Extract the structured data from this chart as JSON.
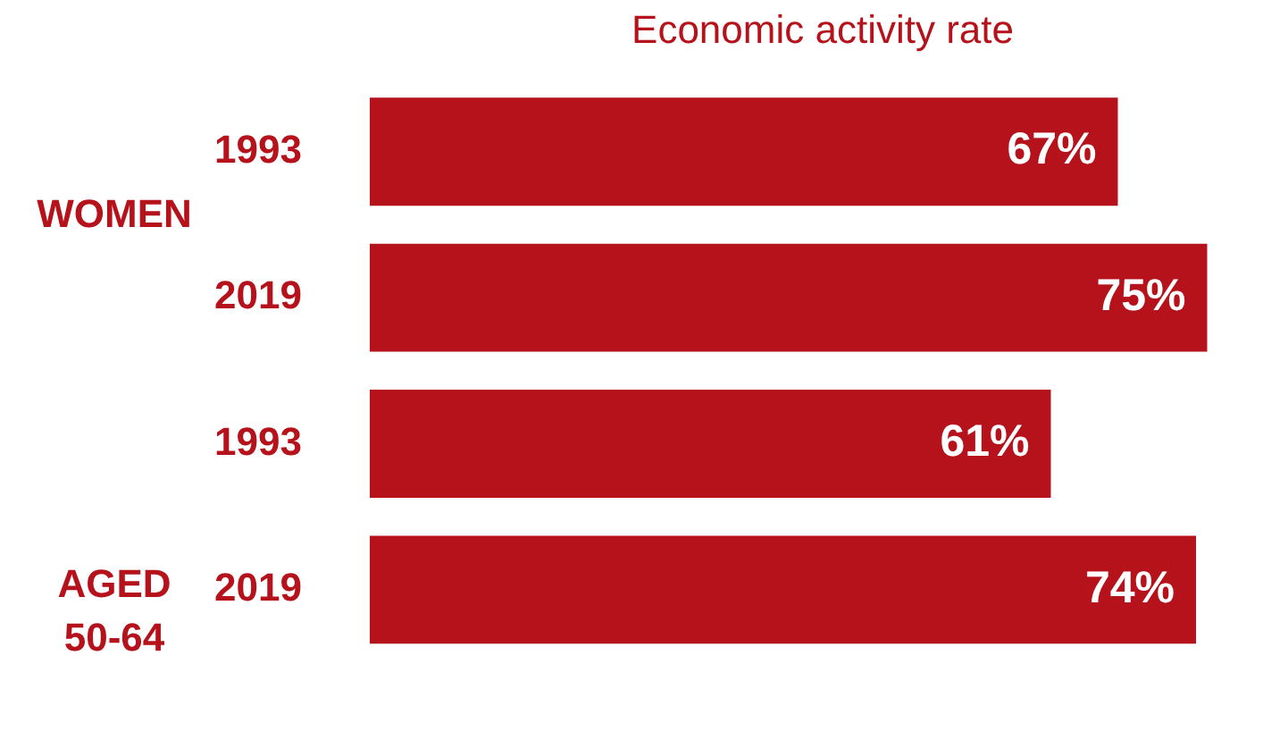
{
  "chart_data": {
    "type": "bar",
    "orientation": "horizontal",
    "title": "Economic activity rate",
    "categories": [
      "1993",
      "2019",
      "1993",
      "2019"
    ],
    "values": [
      67,
      75,
      61,
      74
    ],
    "color": "#b5121b",
    "value_labels": [
      "67%",
      "75%",
      "61%",
      "74%"
    ],
    "annotations": [
      "WOMEN",
      "AGED 50-64"
    ],
    "tick_labels": "y"
  }
}
